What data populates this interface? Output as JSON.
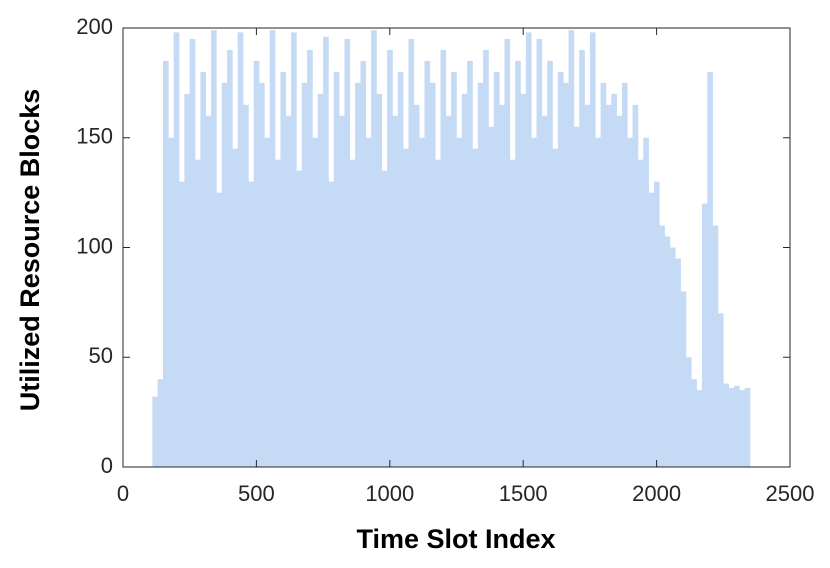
{
  "chart_data": {
    "type": "bar",
    "xlabel": "Time Slot Index",
    "ylabel": "Utilized Resource Blocks",
    "color": "#c5daf5",
    "x": [
      120,
      140,
      160,
      180,
      200,
      220,
      240,
      260,
      280,
      300,
      320,
      340,
      360,
      380,
      400,
      420,
      440,
      460,
      480,
      500,
      520,
      540,
      560,
      580,
      600,
      620,
      640,
      660,
      680,
      700,
      720,
      740,
      760,
      780,
      800,
      820,
      840,
      860,
      880,
      900,
      920,
      940,
      960,
      980,
      1000,
      1020,
      1040,
      1060,
      1080,
      1100,
      1120,
      1140,
      1160,
      1180,
      1200,
      1220,
      1240,
      1260,
      1280,
      1300,
      1320,
      1340,
      1360,
      1380,
      1400,
      1420,
      1440,
      1460,
      1480,
      1500,
      1520,
      1540,
      1560,
      1580,
      1600,
      1620,
      1640,
      1660,
      1680,
      1700,
      1720,
      1740,
      1760,
      1780,
      1800,
      1820,
      1840,
      1860,
      1880,
      1900,
      1920,
      1940,
      1960,
      1980,
      2000,
      2020,
      2040,
      2060,
      2080,
      2100,
      2120,
      2140,
      2160,
      2180,
      2200,
      2220,
      2240,
      2260,
      2280,
      2300,
      2320,
      2340
    ],
    "values": [
      32,
      40,
      185,
      150,
      198,
      130,
      170,
      195,
      140,
      180,
      160,
      199,
      125,
      175,
      190,
      145,
      198,
      165,
      130,
      185,
      175,
      150,
      199,
      140,
      180,
      160,
      198,
      135,
      175,
      190,
      150,
      170,
      196,
      130,
      180,
      160,
      195,
      140,
      175,
      185,
      150,
      199,
      170,
      135,
      190,
      160,
      180,
      145,
      195,
      165,
      150,
      185,
      175,
      140,
      190,
      160,
      180,
      150,
      170,
      185,
      145,
      175,
      190,
      155,
      180,
      165,
      195,
      140,
      185,
      170,
      198,
      150,
      195,
      160,
      185,
      145,
      180,
      175,
      199,
      155,
      190,
      165,
      198,
      150,
      175,
      165,
      170,
      160,
      175,
      150,
      165,
      140,
      150,
      125,
      130,
      110,
      105,
      100,
      95,
      80,
      50,
      40,
      35,
      120,
      180,
      110,
      70,
      38,
      36,
      37,
      35,
      36
    ],
    "xlim": [
      0,
      2500
    ],
    "xticks": [
      0,
      500,
      1000,
      1500,
      2000,
      2500
    ],
    "ylim": [
      0,
      200
    ],
    "yticks": [
      0,
      50,
      100,
      150,
      200
    ],
    "grid": false
  }
}
